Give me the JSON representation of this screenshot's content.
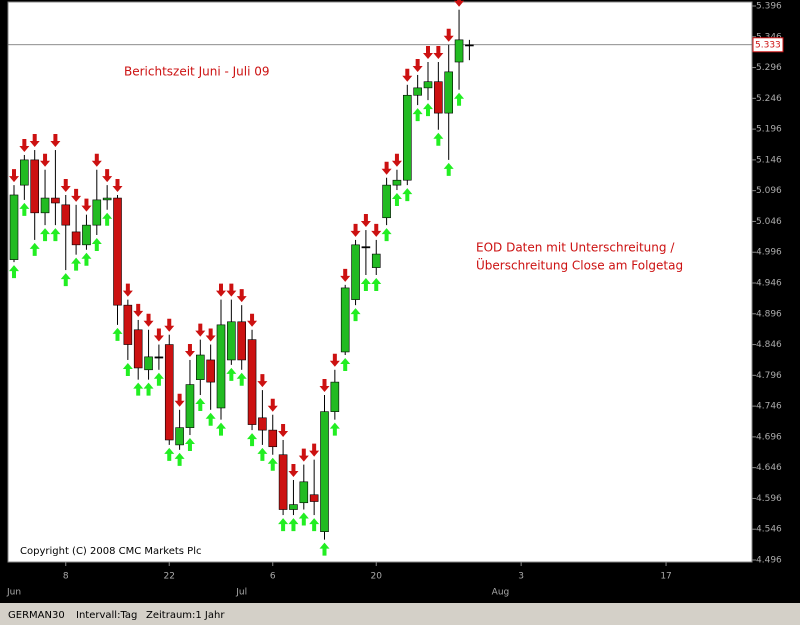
{
  "chart_data": {
    "type": "candlestick",
    "annotation_left": "Berichtszeit Juni - Juli 09",
    "annotation_right": [
      "EOD Daten mit Unterschreitung /",
      "Überschreitung Close am Folgetag"
    ],
    "copyright": "Copyright (C) 2008 CMC Markets Plc",
    "footer": [
      "GERMAN30",
      "Intervall:Tag",
      "Zeitraum:1 Jahr"
    ],
    "categories": [
      null,
      null,
      null,
      null,
      null,
      "8",
      null,
      null,
      null,
      null,
      null,
      null,
      null,
      null,
      null,
      "22",
      null,
      null,
      null,
      null,
      null,
      null,
      null,
      null,
      null,
      "6",
      null,
      null,
      null,
      null,
      null,
      null,
      null,
      null,
      null,
      "20",
      null,
      null,
      null,
      null,
      null,
      null,
      null,
      null,
      null,
      null,
      null,
      null,
      null,
      "3",
      null,
      null,
      null,
      null,
      null,
      null,
      null,
      null,
      null,
      null,
      null,
      null,
      null,
      "17",
      null,
      null,
      null,
      null,
      null,
      null,
      null,
      null
    ],
    "months": [
      "Jun",
      null,
      null,
      null,
      null,
      null,
      null,
      null,
      null,
      null,
      null,
      null,
      null,
      null,
      null,
      null,
      null,
      null,
      null,
      null,
      null,
      null,
      "Jul",
      null,
      null,
      null,
      null,
      null,
      null,
      null,
      null,
      null,
      null,
      null,
      null,
      null,
      null,
      null,
      null,
      null,
      null,
      null,
      null,
      null,
      null,
      null,
      null,
      "Aug",
      null,
      null,
      null,
      null,
      null,
      null,
      null,
      null,
      null,
      null,
      null,
      null,
      null,
      null,
      null,
      null,
      null,
      null,
      null,
      null,
      null,
      null,
      null,
      null
    ],
    "open": [
      4.984,
      5.105,
      5.146,
      5.06,
      5.084,
      5.073,
      5.029,
      5.008,
      5.04,
      5.081,
      5.084,
      4.91,
      4.87,
      4.805,
      4.826,
      4.846,
      4.683,
      4.711,
      4.789,
      4.821,
      4.743,
      4.821,
      4.883,
      4.854,
      4.727,
      4.707,
      4.667,
      4.578,
      4.589,
      4.602,
      4.542,
      4.737,
      4.834,
      4.919,
      5.005,
      4.971,
      5.052,
      5.105,
      5.113,
      5.251,
      5.263,
      5.273,
      5.222,
      5.305,
      5.333,
      null,
      null,
      null,
      null,
      null,
      null,
      null,
      null,
      null,
      null,
      null,
      null,
      null,
      null,
      null,
      null,
      null,
      null,
      null,
      null,
      null,
      null,
      null,
      null,
      null,
      null,
      null
    ],
    "high": [
      5.105,
      5.154,
      5.162,
      5.13,
      5.162,
      5.089,
      5.073,
      5.057,
      5.13,
      5.105,
      5.089,
      4.919,
      4.886,
      4.87,
      4.846,
      4.862,
      4.74,
      4.821,
      4.854,
      4.846,
      4.919,
      4.919,
      4.91,
      4.87,
      4.772,
      4.732,
      4.691,
      4.626,
      4.651,
      4.659,
      4.764,
      4.805,
      4.943,
      5.016,
      5.032,
      5.016,
      5.117,
      5.13,
      5.268,
      5.284,
      5.305,
      5.305,
      5.333,
      5.39,
      5.341,
      null,
      null,
      null,
      null,
      null,
      null,
      null,
      null,
      null,
      null,
      null,
      null,
      null,
      null,
      null,
      null,
      null,
      null,
      null,
      null,
      null,
      null,
      null,
      null,
      null,
      null,
      null
    ],
    "low": [
      4.98,
      5.081,
      5.016,
      5.04,
      5.04,
      4.967,
      4.992,
      5.0,
      5.024,
      5.065,
      4.878,
      4.821,
      4.789,
      4.789,
      4.805,
      4.683,
      4.675,
      4.699,
      4.764,
      4.74,
      4.724,
      4.813,
      4.805,
      4.707,
      4.683,
      4.667,
      4.569,
      4.569,
      4.578,
      4.569,
      4.529,
      4.724,
      4.829,
      4.91,
      4.959,
      4.959,
      5.04,
      5.097,
      5.105,
      5.235,
      5.243,
      5.195,
      5.146,
      5.26,
      5.308,
      null,
      null,
      null,
      null,
      null,
      null,
      null,
      null,
      null,
      null,
      null,
      null,
      null,
      null,
      null,
      null,
      null,
      null,
      null,
      null,
      null,
      null,
      null,
      null,
      null,
      null,
      null
    ],
    "close": [
      5.089,
      5.146,
      5.06,
      5.084,
      5.076,
      5.04,
      5.008,
      5.04,
      5.081,
      5.084,
      4.91,
      4.846,
      4.808,
      4.826,
      4.826,
      4.691,
      4.711,
      4.781,
      4.829,
      4.785,
      4.878,
      4.883,
      4.821,
      4.716,
      4.707,
      4.68,
      4.578,
      4.586,
      4.623,
      4.591,
      4.737,
      4.785,
      4.938,
      5.008,
      5.005,
      4.993,
      5.105,
      5.113,
      5.251,
      5.263,
      5.273,
      5.222,
      5.289,
      5.341,
      5.333,
      null,
      null,
      null,
      null,
      null,
      null,
      null,
      null,
      null,
      null,
      null,
      null,
      null,
      null,
      null,
      null,
      null,
      null,
      null,
      null,
      null,
      null,
      null,
      null,
      null,
      null,
      null
    ],
    "down_arrows": [
      true,
      true,
      true,
      true,
      true,
      true,
      true,
      true,
      true,
      true,
      true,
      true,
      true,
      true,
      true,
      true,
      true,
      true,
      true,
      true,
      true,
      true,
      true,
      true,
      true,
      true,
      true,
      true,
      true,
      true,
      true,
      true,
      true,
      true,
      true,
      true,
      true,
      true,
      true,
      true,
      true,
      true,
      true,
      true,
      false,
      null,
      null,
      null,
      null,
      null,
      null,
      null,
      null,
      null,
      null,
      null,
      null,
      null,
      null,
      null,
      null,
      null,
      null,
      null,
      null,
      null,
      null,
      null,
      null,
      null,
      null,
      null
    ],
    "up_arrows": [
      true,
      true,
      true,
      true,
      true,
      true,
      true,
      true,
      true,
      true,
      true,
      true,
      true,
      true,
      true,
      true,
      true,
      true,
      true,
      true,
      true,
      true,
      true,
      true,
      true,
      true,
      true,
      true,
      true,
      true,
      true,
      true,
      true,
      true,
      true,
      true,
      true,
      true,
      true,
      true,
      true,
      true,
      true,
      true,
      false,
      null,
      null,
      null,
      null,
      null,
      null,
      null,
      null,
      null,
      null,
      null,
      null,
      null,
      null,
      null,
      null,
      null,
      null,
      null,
      null,
      null,
      null,
      null,
      null,
      null,
      null,
      null
    ],
    "up_color": "#22bb22",
    "down_color": "#cc1111",
    "last_price": 5.333,
    "ylim": [
      4.496,
      5.396
    ],
    "yticks": [
      4.496,
      4.546,
      4.596,
      4.646,
      4.696,
      4.746,
      4.796,
      4.846,
      4.896,
      4.946,
      4.996,
      5.046,
      5.096,
      5.146,
      5.196,
      5.246,
      5.296,
      5.346,
      5.396
    ]
  }
}
